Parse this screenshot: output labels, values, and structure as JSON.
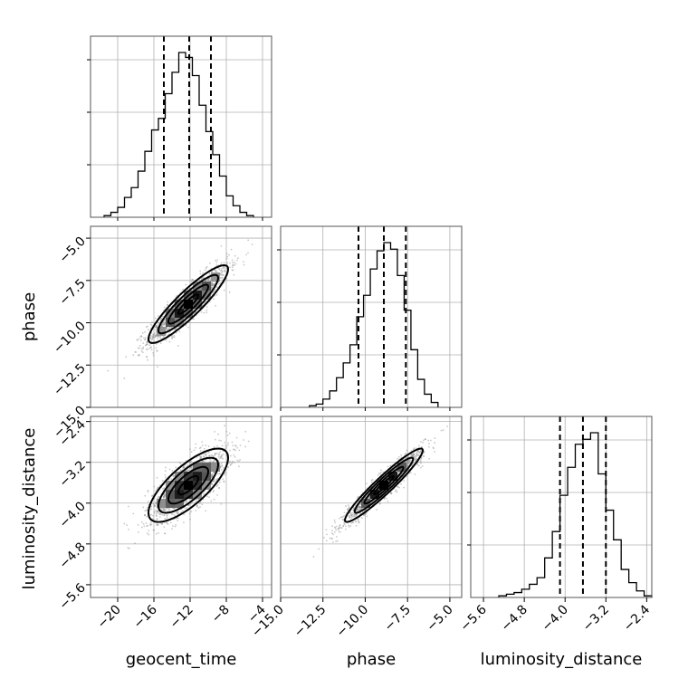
{
  "chart_data": {
    "type": "corner",
    "parameters": [
      "geocent_time",
      "phase",
      "luminosity_distance"
    ],
    "axis_labels": {
      "geocent_time": "geocent_time",
      "phase": "phase",
      "luminosity_distance": "luminosity_distance"
    },
    "ranges": {
      "geocent_time": [
        -23,
        -3
      ],
      "phase": [
        -15,
        -4.3
      ],
      "luminosity_distance": [
        -5.85,
        -2.3
      ]
    },
    "ticks": {
      "geocent_time": [
        -20,
        -16,
        -12,
        -8,
        -4
      ],
      "phase": [
        -15.0,
        -12.5,
        -10.0,
        -7.5,
        -5.0
      ],
      "luminosity_distance": [
        -5.6,
        -4.8,
        -4.0,
        -3.2,
        -2.4
      ]
    },
    "tick_labels": {
      "geocent_time": [
        "−20",
        "−16",
        "−12",
        "−8",
        "−4"
      ],
      "phase": [
        "−15.0",
        "−12.5",
        "−10.0",
        "−7.5",
        "−5.0"
      ],
      "luminosity_distance": [
        "−5.6",
        "−4.8",
        "−4.0",
        "−3.2",
        "−2.4"
      ]
    },
    "quantiles": {
      "geocent_time": [
        -14.9,
        -12.1,
        -9.7
      ],
      "phase": [
        -10.4,
        -8.9,
        -7.6
      ],
      "luminosity_distance": [
        -4.1,
        -3.65,
        -3.2
      ]
    },
    "marginals": {
      "geocent_time": {
        "edges": [
          -21.5,
          -20.75,
          -20.0,
          -19.25,
          -18.5,
          -17.75,
          -17.0,
          -16.25,
          -15.5,
          -14.75,
          -14.0,
          -13.25,
          -12.5,
          -11.75,
          -11.0,
          -10.25,
          -9.5,
          -8.75,
          -8.0,
          -7.25,
          -6.5,
          -5.75,
          -5.0
        ],
        "counts": [
          1,
          3,
          6,
          12,
          18,
          28,
          40,
          53,
          60,
          75,
          88,
          100,
          97,
          86,
          68,
          52,
          38,
          25,
          13,
          7,
          3,
          1
        ]
      },
      "phase": {
        "edges": [
          -13.3,
          -12.9,
          -12.5,
          -12.1,
          -11.7,
          -11.3,
          -10.9,
          -10.5,
          -10.1,
          -9.7,
          -9.3,
          -8.9,
          -8.5,
          -8.1,
          -7.7,
          -7.3,
          -6.9,
          -6.5,
          -6.1,
          -5.7
        ],
        "counts": [
          1,
          2,
          5,
          10,
          18,
          27,
          38,
          55,
          68,
          84,
          95,
          100,
          96,
          80,
          59,
          35,
          17,
          8,
          3
        ]
      },
      "luminosity_distance": {
        "edges": [
          -5.3,
          -5.15,
          -5.0,
          -4.85,
          -4.7,
          -4.55,
          -4.4,
          -4.25,
          -4.1,
          -3.95,
          -3.8,
          -3.65,
          -3.5,
          -3.35,
          -3.2,
          -3.05,
          -2.9,
          -2.75,
          -2.6,
          -2.45,
          -2.3
        ],
        "counts": [
          1,
          2,
          3,
          5,
          8,
          12,
          24,
          40,
          62,
          79,
          93,
          96,
          100,
          75,
          53,
          35,
          17,
          9,
          4,
          1
        ]
      }
    },
    "correlations": {
      "phase_vs_geocent_time": 0.9,
      "luminosity_distance_vs_geocent_time": 0.75,
      "luminosity_distance_vs_phase": 0.95
    }
  }
}
